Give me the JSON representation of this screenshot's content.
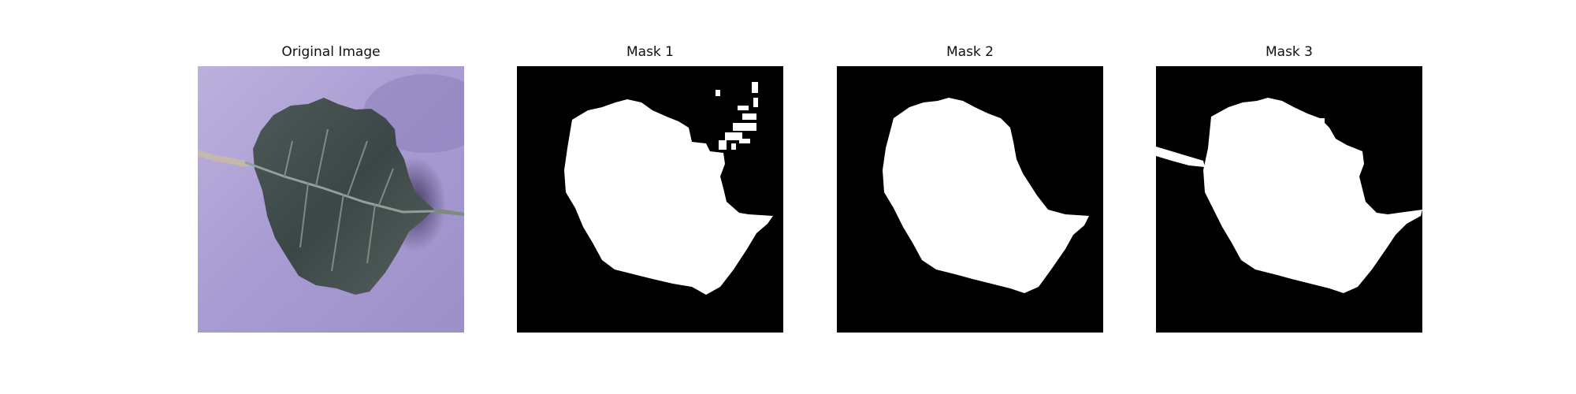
{
  "panels": [
    {
      "title": "Original Image"
    },
    {
      "title": "Mask 1"
    },
    {
      "title": "Mask 2"
    },
    {
      "title": "Mask 3"
    }
  ],
  "colors": {
    "background_purple": "#a99ad0",
    "leaf_dark": "#3f4a4a",
    "leaf_mid": "#5a6763",
    "mask_background": "#000000",
    "mask_foreground": "#ffffff"
  }
}
